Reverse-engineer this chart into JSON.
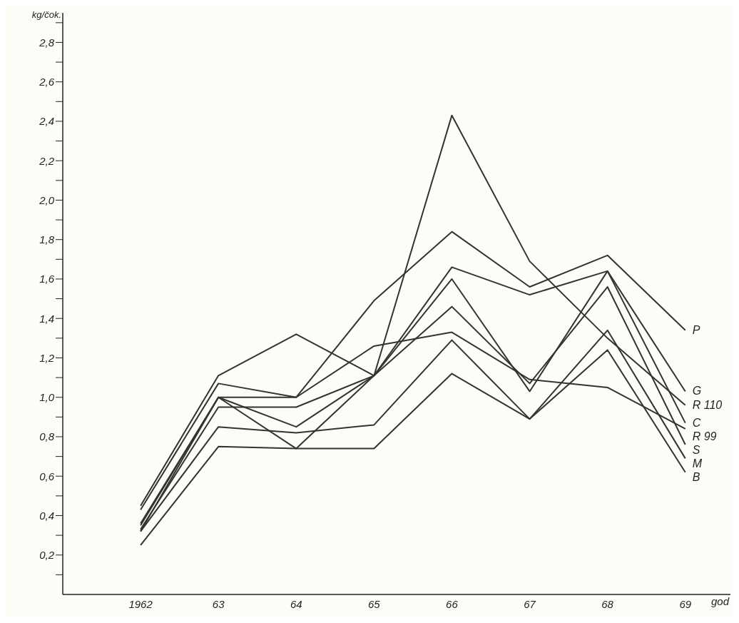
{
  "chart_data": {
    "type": "line",
    "ylabel": "kg/čok.",
    "xlabel": "god",
    "categories": [
      "1962",
      "63",
      "64",
      "65",
      "66",
      "67",
      "68",
      "69"
    ],
    "series": [
      {
        "name": "P",
        "color": "#333333",
        "values": [
          0.43,
          1.07,
          1.0,
          1.49,
          1.84,
          1.56,
          1.72,
          1.34
        ]
      },
      {
        "name": "G",
        "color": "#333333",
        "values": [
          0.45,
          1.11,
          1.32,
          1.11,
          1.66,
          1.52,
          1.64,
          1.03
        ]
      },
      {
        "name": "R 110",
        "color": "#333333",
        "values": [
          0.35,
          1.0,
          0.74,
          1.11,
          2.43,
          1.69,
          1.3,
          0.96
        ]
      },
      {
        "name": "C",
        "color": "#333333",
        "values": [
          0.33,
          0.95,
          0.95,
          1.11,
          1.6,
          1.03,
          1.64,
          0.87
        ]
      },
      {
        "name": "R 99",
        "color": "#333333",
        "values": [
          0.36,
          1.0,
          1.0,
          1.26,
          1.33,
          1.09,
          1.05,
          0.84
        ]
      },
      {
        "name": "S",
        "color": "#333333",
        "values": [
          0.32,
          1.0,
          0.85,
          1.11,
          1.46,
          1.07,
          1.56,
          0.76
        ]
      },
      {
        "name": "M",
        "color": "#333333",
        "values": [
          0.32,
          0.85,
          0.82,
          0.86,
          1.29,
          0.89,
          1.34,
          0.69
        ]
      },
      {
        "name": "B",
        "color": "#333333",
        "values": [
          0.25,
          0.75,
          0.74,
          0.74,
          1.12,
          0.89,
          1.24,
          0.62
        ]
      }
    ],
    "ylim": [
      0,
      2.95
    ],
    "yticks": [
      {
        "value": 0.1,
        "label": null
      },
      {
        "value": 0.2,
        "label": "0,2"
      },
      {
        "value": 0.3,
        "label": null
      },
      {
        "value": 0.4,
        "label": "0,4"
      },
      {
        "value": 0.5,
        "label": null
      },
      {
        "value": 0.6,
        "label": "0,6"
      },
      {
        "value": 0.7,
        "label": null
      },
      {
        "value": 0.8,
        "label": "0,8"
      },
      {
        "value": 0.9,
        "label": null
      },
      {
        "value": 1.0,
        "label": "1,0"
      },
      {
        "value": 1.1,
        "label": null
      },
      {
        "value": 1.2,
        "label": "1,2"
      },
      {
        "value": 1.3,
        "label": null
      },
      {
        "value": 1.4,
        "label": "1,4"
      },
      {
        "value": 1.5,
        "label": null
      },
      {
        "value": 1.6,
        "label": "1,6"
      },
      {
        "value": 1.7,
        "label": null
      },
      {
        "value": 1.8,
        "label": "1,8"
      },
      {
        "value": 1.9,
        "label": null
      },
      {
        "value": 2.0,
        "label": "2,0"
      },
      {
        "value": 2.1,
        "label": null
      },
      {
        "value": 2.2,
        "label": "2,2"
      },
      {
        "value": 2.3,
        "label": null
      },
      {
        "value": 2.4,
        "label": "2,4"
      },
      {
        "value": 2.5,
        "label": null
      },
      {
        "value": 2.6,
        "label": "2,6"
      },
      {
        "value": 2.7,
        "label": null
      },
      {
        "value": 2.8,
        "label": "2,8"
      },
      {
        "value": 2.9,
        "label": null
      }
    ],
    "grid": false,
    "legend": false,
    "marker": "none",
    "line_style": "solid"
  }
}
